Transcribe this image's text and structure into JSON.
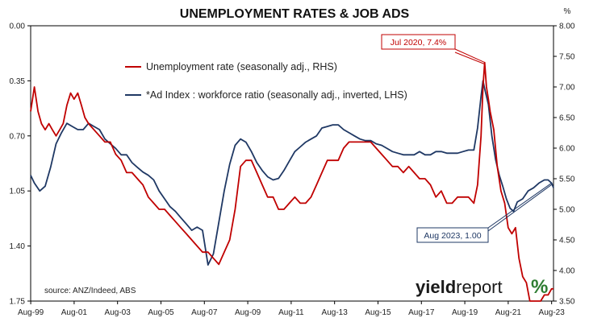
{
  "chart_data": {
    "type": "line",
    "title": "UNEMPLOYMENT RATES & JOB ADS",
    "right_axis_unit": "%",
    "x_tick_labels": [
      "Aug-99",
      "Aug-01",
      "Aug-03",
      "Aug-05",
      "Aug-07",
      "Aug-09",
      "Aug-11",
      "Aug-13",
      "Aug-15",
      "Aug-17",
      "Aug-19",
      "Aug-21",
      "Aug-23"
    ],
    "x_range": [
      1999.58,
      2023.67
    ],
    "left_axis": {
      "labels": [
        "0.00",
        "0.35",
        "0.70",
        "1.05",
        "1.40",
        "1.75"
      ],
      "range": [
        0.0,
        1.75
      ],
      "inverted": true
    },
    "right_axis": {
      "labels": [
        "8.00",
        "7.50",
        "7.00",
        "6.50",
        "6.00",
        "5.50",
        "5.00",
        "4.50",
        "4.00",
        "3.50"
      ],
      "range": [
        3.5,
        8.0
      ]
    },
    "grid": false,
    "legend_position": "top-left",
    "series": [
      {
        "name": "Unemployment rate (seasonally adj., RHS)",
        "axis": "right",
        "color": "#c00000",
        "x": [
          1999.58,
          1999.75,
          1999.92,
          2000.08,
          2000.25,
          2000.42,
          2000.58,
          2000.75,
          2000.92,
          2001.08,
          2001.25,
          2001.42,
          2001.58,
          2001.75,
          2001.92,
          2002.08,
          2002.25,
          2002.5,
          2002.75,
          2003.0,
          2003.25,
          2003.5,
          2003.75,
          2004.0,
          2004.25,
          2004.5,
          2004.75,
          2005.0,
          2005.25,
          2005.5,
          2005.75,
          2006.0,
          2006.25,
          2006.5,
          2006.75,
          2007.0,
          2007.25,
          2007.5,
          2007.75,
          2008.0,
          2008.25,
          2008.5,
          2008.75,
          2009.0,
          2009.25,
          2009.5,
          2009.75,
          2010.0,
          2010.25,
          2010.5,
          2010.75,
          2011.0,
          2011.25,
          2011.5,
          2011.75,
          2012.0,
          2012.25,
          2012.5,
          2012.75,
          2013.0,
          2013.25,
          2013.5,
          2013.75,
          2014.0,
          2014.25,
          2014.5,
          2014.75,
          2015.0,
          2015.25,
          2015.5,
          2015.75,
          2016.0,
          2016.25,
          2016.5,
          2016.75,
          2017.0,
          2017.25,
          2017.5,
          2017.75,
          2018.0,
          2018.25,
          2018.5,
          2018.75,
          2019.0,
          2019.25,
          2019.5,
          2019.75,
          2020.0,
          2020.17,
          2020.33,
          2020.42,
          2020.5,
          2020.58,
          2020.67,
          2020.75,
          2020.92,
          2021.08,
          2021.25,
          2021.42,
          2021.58,
          2021.75,
          2021.92,
          2022.08,
          2022.25,
          2022.42,
          2022.58,
          2022.75,
          2022.92,
          2023.08,
          2023.25,
          2023.42,
          2023.58,
          2023.67
        ],
        "values": [
          6.6,
          7.0,
          6.6,
          6.4,
          6.3,
          6.4,
          6.3,
          6.2,
          6.3,
          6.4,
          6.7,
          6.9,
          6.8,
          6.9,
          6.7,
          6.5,
          6.4,
          6.3,
          6.2,
          6.1,
          6.1,
          5.9,
          5.8,
          5.6,
          5.6,
          5.5,
          5.4,
          5.2,
          5.1,
          5.0,
          5.0,
          4.9,
          4.8,
          4.7,
          4.6,
          4.5,
          4.4,
          4.3,
          4.3,
          4.2,
          4.1,
          4.3,
          4.5,
          5.0,
          5.7,
          5.8,
          5.8,
          5.6,
          5.4,
          5.2,
          5.2,
          5.0,
          5.0,
          5.1,
          5.2,
          5.1,
          5.1,
          5.2,
          5.4,
          5.6,
          5.8,
          5.8,
          5.8,
          6.0,
          6.1,
          6.1,
          6.1,
          6.1,
          6.1,
          6.0,
          5.9,
          5.8,
          5.7,
          5.7,
          5.6,
          5.7,
          5.6,
          5.5,
          5.5,
          5.4,
          5.2,
          5.3,
          5.1,
          5.1,
          5.2,
          5.2,
          5.2,
          5.1,
          5.4,
          6.2,
          7.0,
          7.4,
          7.0,
          6.8,
          6.6,
          6.3,
          5.7,
          5.3,
          5.1,
          4.7,
          4.6,
          4.7,
          4.2,
          3.9,
          3.8,
          3.5,
          3.5,
          3.5,
          3.5,
          3.6,
          3.6,
          3.7,
          3.7
        ]
      },
      {
        "name": "*Ad Index : workforce ratio (seasonally adj., inverted, LHS)",
        "axis": "left",
        "color": "#1f3864",
        "x": [
          1999.58,
          1999.75,
          2000.0,
          2000.25,
          2000.5,
          2000.75,
          2001.0,
          2001.25,
          2001.5,
          2001.75,
          2002.0,
          2002.25,
          2002.5,
          2002.75,
          2003.0,
          2003.25,
          2003.5,
          2003.75,
          2004.0,
          2004.25,
          2004.5,
          2004.75,
          2005.0,
          2005.25,
          2005.5,
          2005.75,
          2006.0,
          2006.25,
          2006.5,
          2006.75,
          2007.0,
          2007.25,
          2007.5,
          2007.75,
          2008.0,
          2008.25,
          2008.5,
          2008.75,
          2009.0,
          2009.25,
          2009.5,
          2009.75,
          2010.0,
          2010.25,
          2010.5,
          2010.75,
          2011.0,
          2011.25,
          2011.5,
          2011.75,
          2012.0,
          2012.25,
          2012.5,
          2012.75,
          2013.0,
          2013.25,
          2013.5,
          2013.75,
          2014.0,
          2014.25,
          2014.5,
          2014.75,
          2015.0,
          2015.25,
          2015.5,
          2015.75,
          2016.0,
          2016.25,
          2016.5,
          2016.75,
          2017.0,
          2017.25,
          2017.5,
          2017.75,
          2018.0,
          2018.25,
          2018.5,
          2018.75,
          2019.0,
          2019.25,
          2019.5,
          2019.75,
          2020.0,
          2020.17,
          2020.33,
          2020.42,
          2020.5,
          2020.67,
          2020.83,
          2021.0,
          2021.17,
          2021.33,
          2021.5,
          2021.67,
          2021.83,
          2022.0,
          2022.25,
          2022.5,
          2022.75,
          2023.0,
          2023.25,
          2023.42,
          2023.58,
          2023.67
        ],
        "values": [
          0.95,
          1.0,
          1.05,
          1.02,
          0.9,
          0.75,
          0.68,
          0.62,
          0.64,
          0.66,
          0.66,
          0.62,
          0.64,
          0.66,
          0.72,
          0.75,
          0.78,
          0.82,
          0.82,
          0.87,
          0.9,
          0.93,
          0.95,
          0.98,
          1.05,
          1.1,
          1.15,
          1.18,
          1.22,
          1.26,
          1.3,
          1.28,
          1.3,
          1.52,
          1.45,
          1.25,
          1.05,
          0.88,
          0.76,
          0.72,
          0.74,
          0.8,
          0.87,
          0.92,
          0.96,
          0.98,
          0.97,
          0.92,
          0.86,
          0.8,
          0.77,
          0.74,
          0.72,
          0.7,
          0.65,
          0.64,
          0.63,
          0.63,
          0.66,
          0.68,
          0.7,
          0.72,
          0.73,
          0.73,
          0.75,
          0.76,
          0.78,
          0.8,
          0.81,
          0.82,
          0.82,
          0.82,
          0.8,
          0.82,
          0.82,
          0.8,
          0.8,
          0.81,
          0.81,
          0.81,
          0.8,
          0.79,
          0.79,
          0.65,
          0.45,
          0.35,
          0.4,
          0.5,
          0.7,
          0.85,
          0.95,
          1.02,
          1.1,
          1.16,
          1.18,
          1.12,
          1.1,
          1.05,
          1.03,
          1.0,
          0.98,
          0.98,
          1.0,
          1.03
        ]
      }
    ],
    "annotations": [
      {
        "text": "Jul 2020, 7.4%",
        "series": 0,
        "x": 2020.5,
        "y": 7.4,
        "border_color": "#c00000",
        "text_color": "#c00000"
      },
      {
        "text": "Aug 2023, 1.00",
        "series": 1,
        "x": 2023.58,
        "y": 1.0,
        "border_color": "#1f3864",
        "text_color": "#1f3864"
      }
    ],
    "source_note": "source: ANZ/Indeed, ABS"
  },
  "logo": {
    "bold": "yield",
    "light": "report",
    "mark": "%",
    "mark_colors": [
      "#2e7d32",
      "#c00000"
    ]
  }
}
